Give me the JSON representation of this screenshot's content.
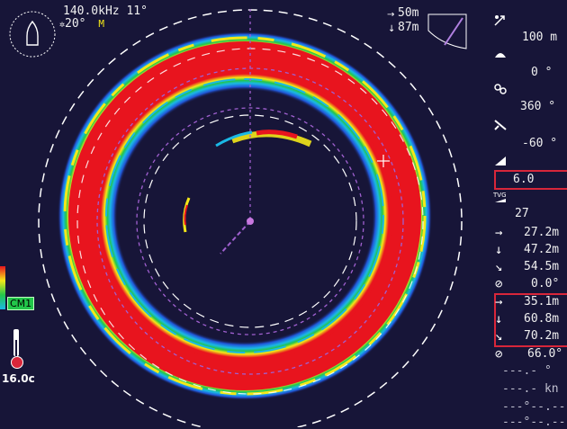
{
  "header": {
    "freq_tilt": "140.0kHz 11°",
    "heading": "20°",
    "mode_badge": "M",
    "range_h": "50m",
    "range_d": "87m"
  },
  "right_panel": {
    "range_value": "100 m",
    "train_value": "0 °",
    "sector_value": "360 °",
    "tilt_value": "-60 °",
    "gain_value": "6.0",
    "tvg_value": "27",
    "cursor": {
      "horizontal": "27.2m",
      "depth": "47.2m",
      "slant": "54.5m",
      "bearing": "0.0°"
    },
    "marker": {
      "horizontal": "35.1m",
      "depth": "60.8m",
      "slant": "70.2m",
      "bearing": "66.0°"
    },
    "speed_line": "---.- °",
    "kn_line": "---.- kn",
    "dashes_line1": "---°--.---",
    "dashes_line2": "---°--.---"
  },
  "left_panel": {
    "cm_label": "CM1",
    "temperature": "16.0c"
  },
  "colors": {
    "background": "#171538",
    "echo_red": "#e8141e",
    "echo_yellow": "#f4e818",
    "echo_green": "#22c64a",
    "echo_cyan": "#1ab8e6",
    "echo_blue": "#2156d8",
    "box_red": "#d8263a"
  }
}
